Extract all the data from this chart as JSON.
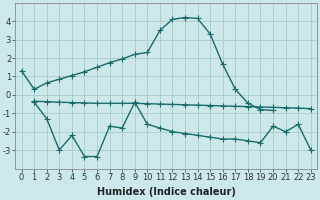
{
  "background_color": "#cce8e8",
  "grid_color": "#aacccc",
  "line_color": "#1a6b6b",
  "line_width": 1.0,
  "marker": "+",
  "marker_size": 4,
  "marker_edge_width": 0.8,
  "xlabel": "Humidex (Indice chaleur)",
  "xlabel_fontsize": 7,
  "tick_fontsize": 6,
  "ylim": [
    -4,
    5
  ],
  "xlim": [
    -0.5,
    23.5
  ],
  "yticks": [
    -3,
    -2,
    -1,
    0,
    1,
    2,
    3,
    4
  ],
  "xticks": [
    0,
    1,
    2,
    3,
    4,
    5,
    6,
    7,
    8,
    9,
    10,
    11,
    12,
    13,
    14,
    15,
    16,
    17,
    18,
    19,
    20,
    21,
    22,
    23
  ],
  "line1_x": [
    0,
    1,
    2,
    3,
    4,
    5,
    6,
    7,
    8,
    9,
    10,
    11,
    12,
    13,
    14,
    15,
    16,
    17,
    18,
    19,
    20
  ],
  "line1_y": [
    1.3,
    0.3,
    0.65,
    0.85,
    1.05,
    1.25,
    1.5,
    1.75,
    1.95,
    2.2,
    2.3,
    3.5,
    4.1,
    4.2,
    4.15,
    3.3,
    1.65,
    0.3,
    -0.45,
    -0.8,
    -0.85
  ],
  "line2_x": [
    1,
    2,
    3,
    4,
    5,
    6,
    7,
    8,
    9,
    10,
    11,
    12,
    13,
    14,
    15,
    16,
    17,
    18,
    19,
    20,
    21,
    22,
    23
  ],
  "line2_y": [
    -0.35,
    -0.37,
    -0.4,
    -0.42,
    -0.44,
    -0.46,
    -0.46,
    -0.46,
    -0.46,
    -0.48,
    -0.5,
    -0.52,
    -0.54,
    -0.56,
    -0.58,
    -0.6,
    -0.62,
    -0.64,
    -0.66,
    -0.68,
    -0.7,
    -0.72,
    -0.75
  ],
  "line3_x": [
    1,
    2,
    3,
    4,
    5,
    6,
    7,
    8,
    9,
    10,
    11,
    12,
    13,
    14,
    15,
    16,
    17,
    18,
    19,
    20,
    21,
    22,
    23
  ],
  "line3_y": [
    -0.4,
    -1.3,
    -3.0,
    -2.2,
    -3.35,
    -3.35,
    -1.7,
    -1.8,
    -0.4,
    -1.6,
    -1.8,
    -2.0,
    -2.1,
    -2.2,
    -2.3,
    -2.4,
    -2.4,
    -2.5,
    -2.6,
    -1.7,
    -2.0,
    -1.6,
    -3.0
  ]
}
